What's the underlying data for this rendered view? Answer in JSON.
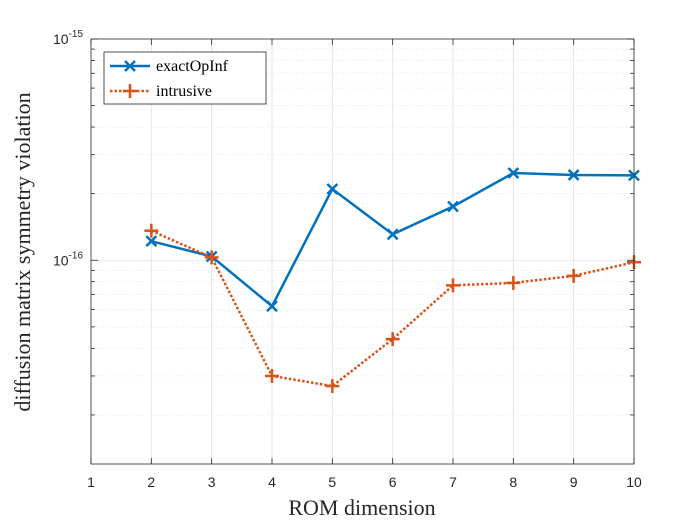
{
  "chart_data": {
    "type": "line",
    "xlabel": "ROM dimension",
    "ylabel": "diffusion matrix symmetry violation",
    "xlim": [
      1,
      10
    ],
    "ylim": [
      1.2e-17,
      1e-15
    ],
    "yscale": "log",
    "grid": true,
    "legend_position": "top-left",
    "x_ticks": [
      "1",
      "2",
      "3",
      "4",
      "5",
      "6",
      "7",
      "8",
      "9",
      "10"
    ],
    "y_ticks": [
      {
        "base": "10",
        "exp": "-16",
        "value": 1e-16
      },
      {
        "base": "10",
        "exp": "-15",
        "value": 1e-15
      }
    ],
    "x": [
      2,
      3,
      4,
      5,
      6,
      7,
      8,
      9,
      10
    ],
    "series": [
      {
        "name": "exactOpInf",
        "color": "#0072BD",
        "marker": "x",
        "line_style": "solid",
        "values": [
          1.22e-16,
          1.04e-16,
          6.2e-17,
          2.1e-16,
          1.31e-16,
          1.75e-16,
          2.48e-16,
          2.43e-16,
          2.42e-16
        ]
      },
      {
        "name": "intrusive",
        "color": "#D95319",
        "marker": "+",
        "line_style": "dotted",
        "values": [
          1.36e-16,
          1.03e-16,
          3e-17,
          2.7e-17,
          4.4e-17,
          7.7e-17,
          7.9e-17,
          8.5e-17,
          9.8e-17
        ]
      }
    ]
  }
}
